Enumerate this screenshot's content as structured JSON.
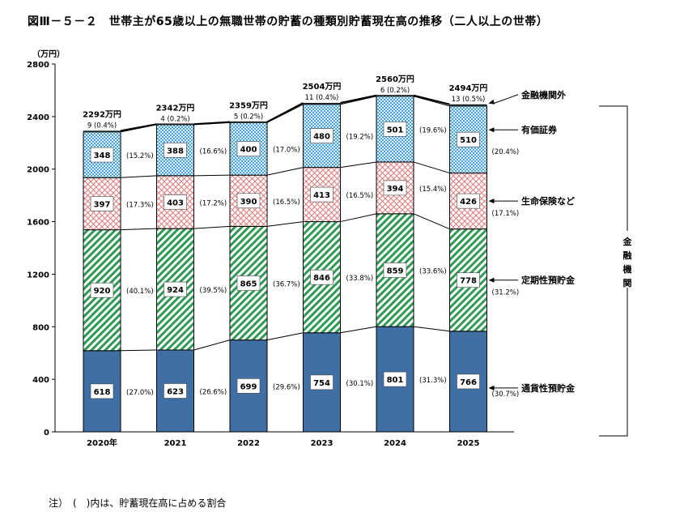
{
  "chart_data": {
    "type": "bar",
    "stacked": true,
    "title": "図Ⅲ－５－２　世帯主が65歳以上の無職世帯の貯蓄の種類別貯蓄現在高の推移（二人以上の世帯）",
    "ylabel": "（万円）",
    "xlabel": "",
    "ylim": [
      0,
      2800
    ],
    "yticks": [
      "0",
      "400",
      "800",
      "1200",
      "1600",
      "2000",
      "2400",
      "2800"
    ],
    "categories": [
      "2020年",
      "2021",
      "2022",
      "2023",
      "2024",
      "2025"
    ],
    "totals": [
      2292,
      2342,
      2359,
      2504,
      2560,
      2494
    ],
    "total_labels": [
      "2292万円",
      "2342万円",
      "2359万円",
      "2504万円",
      "2560万円",
      "2494万円"
    ],
    "series": [
      {
        "name": "通貨性預貯金",
        "color": "#3f6fa5",
        "pattern": "solid",
        "values": [
          618,
          623,
          699,
          754,
          801,
          766
        ],
        "percent_labels": [
          "(27.0%)",
          "(26.6%)",
          "(29.6%)",
          "(30.1%)",
          "(31.3%)",
          "(30.7%)"
        ]
      },
      {
        "name": "定期性預貯金",
        "color": "#2e9a55",
        "pattern": "diagonal",
        "values": [
          920,
          924,
          865,
          846,
          859,
          778
        ],
        "percent_labels": [
          "(40.1%)",
          "(39.5%)",
          "(36.7%)",
          "(33.8%)",
          "(33.6%)",
          "(31.2%)"
        ]
      },
      {
        "name": "生命保険など",
        "color": "#e07a7a",
        "pattern": "crosshatch",
        "values": [
          397,
          403,
          390,
          413,
          394,
          426
        ],
        "percent_labels": [
          "(17.3%)",
          "(17.2%)",
          "(16.5%)",
          "(16.5%)",
          "(15.4%)",
          "(17.1%)"
        ]
      },
      {
        "name": "有価証券",
        "color": "#4aa3d8",
        "pattern": "dots",
        "values": [
          348,
          388,
          400,
          480,
          501,
          510
        ],
        "percent_labels": [
          "(15.2%)",
          "(16.6%)",
          "(17.0%)",
          "(19.2%)",
          "(19.6%)",
          "(20.4%)"
        ]
      },
      {
        "name": "金融機関外",
        "color": "#222222",
        "pattern": "solid",
        "values": [
          9,
          4,
          5,
          11,
          6,
          13
        ],
        "percent_labels": [
          "(0.4%)",
          "(0.2%)",
          "(0.2%)",
          "(0.4%)",
          "(0.2%)",
          "(0.5%)"
        ]
      }
    ],
    "bracket_label": "金融機関",
    "grid": false,
    "legend_placement": "right, arrows pointing at last bar"
  },
  "note": "注）　(　)内は、貯蓄現在高に占める割合"
}
